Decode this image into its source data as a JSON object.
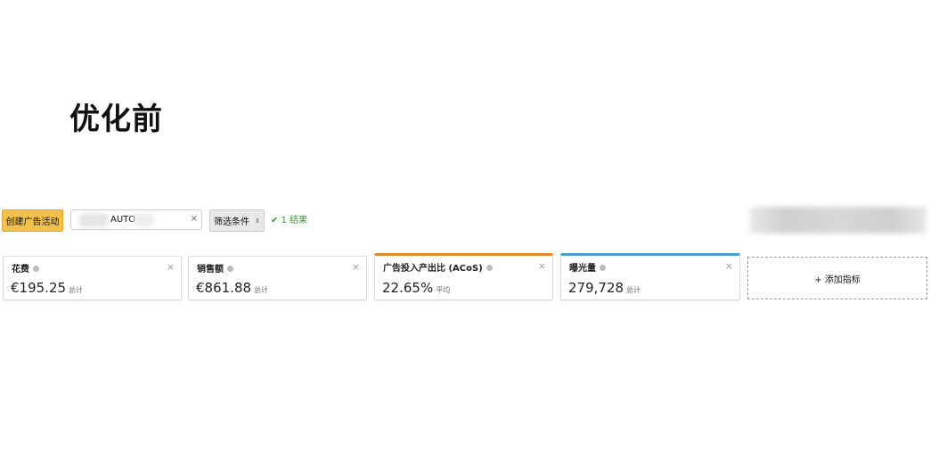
{
  "title": "优化前",
  "toolbar": {
    "create_label": "创建广告活动",
    "search_value": "AUTO",
    "clear": "×",
    "filter_label": "筛选条件",
    "filter_arrow": "⇕",
    "result_text": "1 结果",
    "result_icon": "✔"
  },
  "colors": {
    "create_bg": "#f3c14b",
    "acos_accent": "#e8892b",
    "impressions_accent": "#4a9fd1",
    "result": "#2a9d2a"
  },
  "metrics": [
    {
      "label": "花费",
      "value": "€195.25",
      "unit": "总计"
    },
    {
      "label": "销售额",
      "value": "€861.88",
      "unit": "总计"
    },
    {
      "label": "广告投入产出比 (ACoS)",
      "value": "22.65%",
      "unit": "平均"
    },
    {
      "label": "曝光量",
      "value": "279,728",
      "unit": "总计"
    }
  ],
  "close": "×",
  "add_metric": "+ 添加指标"
}
